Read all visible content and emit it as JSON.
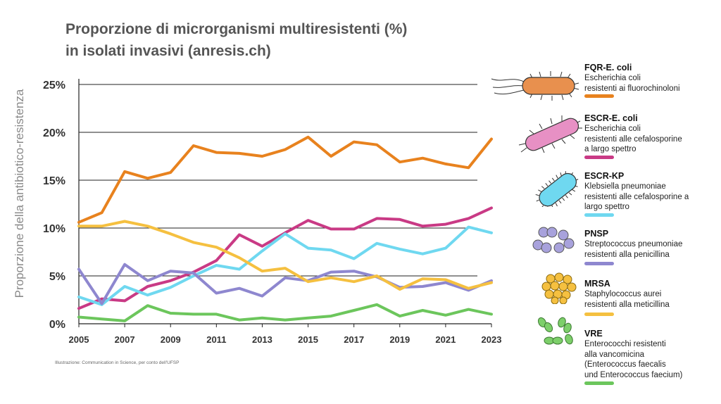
{
  "title": {
    "line1": "Proporzione di microrganismi multiresistenti (%)",
    "line2": "in isolati invasivi (anresis.ch)"
  },
  "credit": "Illustrazione: Communication in Science, per conto dell'UFSP",
  "chart_data": {
    "type": "line",
    "ylabel": "Proporzione della antibiotico-resistenza",
    "xlabel": "",
    "x": [
      2005,
      2006,
      2007,
      2008,
      2009,
      2010,
      2011,
      2012,
      2013,
      2014,
      2015,
      2016,
      2017,
      2018,
      2019,
      2020,
      2021,
      2022,
      2023
    ],
    "xticks": [
      "2005",
      "2007",
      "2009",
      "2011",
      "2013",
      "2015",
      "2017",
      "2019",
      "2021",
      "2023"
    ],
    "yticks": [
      "0%",
      "5%",
      "10%",
      "15%",
      "20%",
      "25%"
    ],
    "ylim": [
      0,
      25
    ],
    "grid": "horizontal",
    "legend_position": "right",
    "series": [
      {
        "name": "FQR-E. coli",
        "color": "#e8821e",
        "values": [
          10.6,
          11.6,
          15.9,
          15.2,
          15.8,
          18.6,
          17.9,
          17.8,
          17.5,
          18.2,
          19.5,
          17.5,
          19.0,
          18.7,
          16.9,
          17.3,
          16.7,
          16.3,
          19.3
        ]
      },
      {
        "name": "ESCR-E. coli",
        "color": "#c93a85",
        "values": [
          1.6,
          2.6,
          2.4,
          3.9,
          4.5,
          5.4,
          6.6,
          9.3,
          8.1,
          9.5,
          10.8,
          9.9,
          9.9,
          11.0,
          10.9,
          10.2,
          10.4,
          11.0,
          12.1
        ]
      },
      {
        "name": "ESCR-KP",
        "color": "#6fd8f0",
        "values": [
          2.8,
          2.0,
          3.9,
          3.0,
          3.8,
          5.0,
          6.1,
          5.7,
          7.6,
          9.4,
          7.9,
          7.7,
          6.8,
          8.4,
          7.8,
          7.3,
          7.9,
          10.1,
          9.5
        ]
      },
      {
        "name": "PNSP",
        "color": "#8e87cf",
        "values": [
          5.7,
          2.1,
          6.2,
          4.5,
          5.5,
          5.3,
          3.2,
          3.7,
          2.9,
          4.8,
          4.5,
          5.4,
          5.5,
          4.9,
          3.8,
          3.9,
          4.3,
          3.5,
          4.5
        ]
      },
      {
        "name": "MRSA",
        "color": "#f5c040",
        "values": [
          10.2,
          10.2,
          10.7,
          10.2,
          9.4,
          8.5,
          8.0,
          6.9,
          5.5,
          5.8,
          4.4,
          4.8,
          4.4,
          5.0,
          3.6,
          4.7,
          4.6,
          3.7,
          4.3
        ]
      },
      {
        "name": "VRE",
        "color": "#6cc65c",
        "values": [
          0.7,
          0.5,
          0.3,
          1.9,
          1.1,
          1.0,
          1.0,
          0.4,
          0.6,
          0.4,
          0.6,
          0.8,
          1.4,
          2.0,
          0.8,
          1.4,
          0.9,
          1.5,
          1.0
        ]
      }
    ]
  },
  "legend": [
    {
      "name": "FQR-E. coli",
      "desc": "Escherichia coli\nresistenti ai fluorochinoloni",
      "color": "#e8821e",
      "icon": "e-coli-orange-icon"
    },
    {
      "name": "ESCR-E. coli",
      "desc": "Escherichia coli\nresistenti alle cefalosporine\na largo spettro",
      "color": "#c93a85",
      "icon": "e-coli-pink-icon"
    },
    {
      "name": "ESCR-KP",
      "desc": "Klebsiella pneumoniae\nresistenti alle cefalosporine a\nlargo spettro",
      "color": "#6fd8f0",
      "icon": "klebsiella-icon"
    },
    {
      "name": "PNSP",
      "desc": "Streptococcus pneumoniae\nresistenti alla penicillina",
      "color": "#8e87cf",
      "icon": "streptococcus-icon"
    },
    {
      "name": "MRSA",
      "desc": "Staphylococcus aurei\nresistenti alla meticillina",
      "color": "#f5c040",
      "icon": "staphylococcus-icon"
    },
    {
      "name": "VRE",
      "desc": "Enterococchi resistenti\nalla vancomicina\n(Enterococcus faecalis\nund Enterococcus faecium)",
      "color": "#6cc65c",
      "icon": "enterococcus-icon"
    }
  ]
}
